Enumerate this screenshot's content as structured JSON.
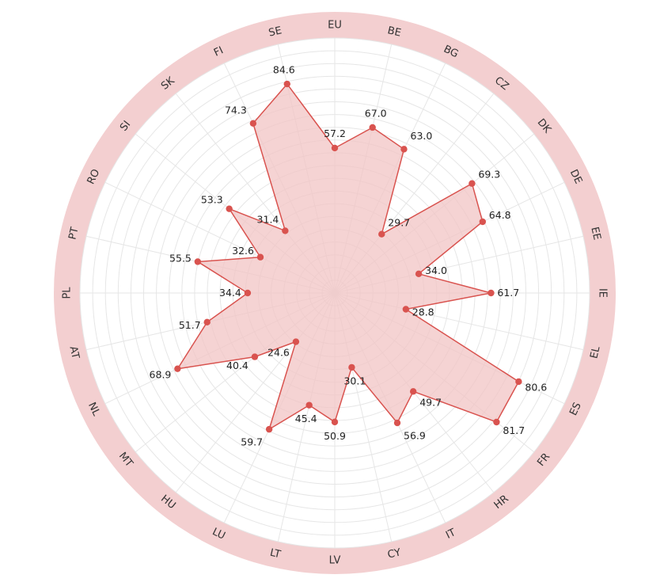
{
  "chart_data": {
    "type": "radar",
    "categories": [
      "EU",
      "BE",
      "BG",
      "CZ",
      "DK",
      "DE",
      "EE",
      "IE",
      "EL",
      "ES",
      "FR",
      "HR",
      "IT",
      "CY",
      "LV",
      "LT",
      "LU",
      "HU",
      "MT",
      "NL",
      "AT",
      "PL",
      "PT",
      "RO",
      "SI",
      "SK",
      "FI",
      "SE"
    ],
    "series": [
      {
        "values": [
          57.2,
          67.0,
          63.0,
          29.7,
          69.3,
          64.8,
          34.0,
          61.7,
          28.8,
          80.6,
          81.7,
          49.7,
          56.9,
          30.1,
          50.9,
          45.4,
          59.7,
          24.6,
          40.4,
          68.9,
          51.7,
          34.4,
          55.5,
          32.6,
          53.3,
          31.4,
          74.3,
          84.6
        ]
      }
    ],
    "value_labels": [
      "57.2",
      "67.0",
      "63.0",
      "29.7",
      "69.3",
      "64.8",
      "34.0",
      "61.7",
      "28.8",
      "80.6",
      "81.7",
      "49.7",
      "56.9",
      "30.1",
      "50.9",
      "45.4",
      "59.7",
      "24.6",
      "40.4",
      "68.9",
      "51.7",
      "34.4",
      "55.5",
      "32.6",
      "53.3",
      "31.4",
      "74.3",
      "84.6"
    ],
    "rlim": [
      0,
      100
    ],
    "grid": true,
    "legend": "none",
    "colors": {
      "series_fill": "#f2c4c4",
      "series_line": "#d9534f",
      "point": "#d9534f",
      "label_band": "#f3cfd0",
      "grid": "#e6e6e6"
    }
  }
}
